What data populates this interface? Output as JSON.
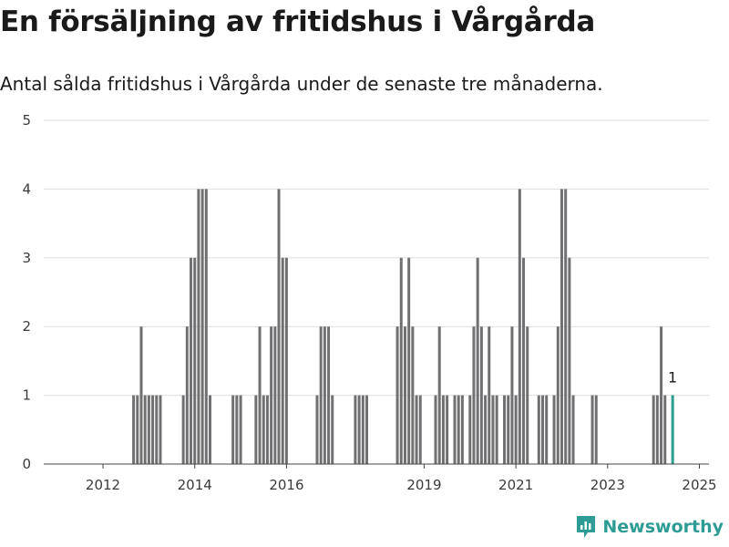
{
  "header": {
    "title": "En försäljning av fritidshus i Vårgårda",
    "subtitle": "Antal sålda fritidshus i Vårgårda under de senaste tre månaderna."
  },
  "brand": {
    "name": "Newsworthy",
    "color": "#2e9c95",
    "icon": "newsworthy-logo-icon"
  },
  "colors": {
    "bar": "#707072",
    "highlight": "#2a9d8f",
    "grid": "#dddddd",
    "axis": "#444444"
  },
  "chart_data": {
    "type": "bar",
    "title": "En försäljning av fritidshus i Vårgårda",
    "subtitle": "Antal sålda fritidshus i Vårgårda under de senaste tre månaderna.",
    "xlabel": "",
    "ylabel": "",
    "ylim": [
      0,
      5
    ],
    "y_ticks": [
      0,
      1,
      2,
      3,
      4,
      5
    ],
    "grid": true,
    "x_ticks": [
      {
        "label": "2012",
        "month": "2012-04"
      },
      {
        "label": "2014",
        "month": "2014-04"
      },
      {
        "label": "2016",
        "month": "2016-04"
      },
      {
        "label": "2019",
        "month": "2019-04"
      },
      {
        "label": "2021",
        "month": "2021-04"
      },
      {
        "label": "2023",
        "month": "2023-04"
      },
      {
        "label": "2025",
        "month": "2025-04"
      }
    ],
    "categories": [
      "2012-12",
      "2013-01",
      "2013-02",
      "2013-03",
      "2013-04",
      "2013-05",
      "2013-06",
      "2013-07",
      "2014-01",
      "2014-02",
      "2014-03",
      "2014-04",
      "2014-05",
      "2014-06",
      "2014-07",
      "2014-08",
      "2015-02",
      "2015-03",
      "2015-04",
      "2015-08",
      "2015-09",
      "2015-10",
      "2015-11",
      "2015-12",
      "2016-01",
      "2016-02",
      "2016-03",
      "2016-04",
      "2016-12",
      "2017-01",
      "2017-02",
      "2017-03",
      "2017-04",
      "2017-10",
      "2017-11",
      "2017-12",
      "2018-01",
      "2018-09",
      "2018-10",
      "2018-11",
      "2018-12",
      "2019-01",
      "2019-02",
      "2019-03",
      "2019-07",
      "2019-08",
      "2019-09",
      "2019-10",
      "2019-12",
      "2020-01",
      "2020-02",
      "2020-04",
      "2020-05",
      "2020-06",
      "2020-07",
      "2020-08",
      "2020-09",
      "2020-10",
      "2020-11",
      "2021-01",
      "2021-02",
      "2021-03",
      "2021-04",
      "2021-05",
      "2021-06",
      "2021-07",
      "2021-10",
      "2021-11",
      "2021-12",
      "2022-02",
      "2022-03",
      "2022-04",
      "2022-05",
      "2022-06",
      "2022-07",
      "2022-12",
      "2023-01",
      "2024-04",
      "2024-05",
      "2024-06",
      "2024-07",
      "2024-09"
    ],
    "values": [
      1,
      1,
      2,
      1,
      1,
      1,
      1,
      1,
      1,
      2,
      3,
      3,
      4,
      4,
      4,
      1,
      1,
      1,
      1,
      1,
      2,
      1,
      1,
      2,
      2,
      4,
      3,
      3,
      1,
      2,
      2,
      2,
      1,
      1,
      1,
      1,
      1,
      2,
      3,
      2,
      3,
      2,
      1,
      1,
      1,
      2,
      1,
      1,
      1,
      1,
      1,
      1,
      2,
      3,
      2,
      1,
      2,
      1,
      1,
      1,
      1,
      2,
      1,
      4,
      3,
      2,
      1,
      1,
      1,
      1,
      2,
      4,
      4,
      3,
      1,
      1,
      1,
      1,
      1,
      2,
      1,
      1
    ],
    "highlight": {
      "month": "2024-09",
      "value": 1,
      "label": "1"
    }
  }
}
